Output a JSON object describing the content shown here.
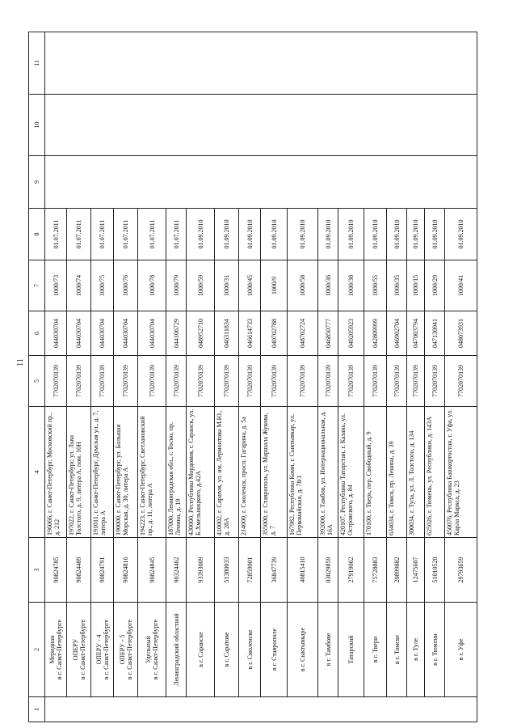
{
  "page_number": "11",
  "column_numbers": [
    "1",
    "2",
    "3",
    "4",
    "5",
    "6",
    "7",
    "8",
    "9",
    "10",
    "11"
  ],
  "rows": [
    {
      "branch": [
        "Меридиан",
        "в г. Санкт-Петербурге"
      ],
      "code": "90824785",
      "address": "196066, г. Санкт-Петербург, Московский пр., д. 212",
      "inn": "7702070139",
      "bik": "044030704",
      "reg": "1000/73",
      "date": "01.07.2011"
    },
    {
      "branch": [
        "ОПЕРУ",
        "в г. Санкт-Петербурге"
      ],
      "code": "90824489",
      "address": "197022, г. Санкт-Петербург, ул. Льва Толстого, д. 9, литера А, пом. 10Н",
      "inn": "7702070139",
      "bik": "044030704",
      "reg": "1000/74",
      "date": "01.07.2011"
    },
    {
      "branch": [
        "ОПЕРУ - 4",
        "в г. Санкт-Петербурге"
      ],
      "code": "90824791",
      "address": "191011, г. Санкт-Петербург, Думская ул., д. 7, литера А",
      "inn": "7702070139",
      "bik": "044030704",
      "reg": "1000/75",
      "date": "01.07.2011"
    },
    {
      "branch": [
        "ОПЕРУ - 5",
        "в г. Санкт-Петербурге"
      ],
      "code": "90824816",
      "address": "190000, г. Санкт-Петербург, ул. Большая Морская, д. 30, литера А",
      "inn": "7702070139",
      "bik": "044030704",
      "reg": "1000/76",
      "date": "01.07.2011"
    },
    {
      "branch": [
        "Удельный",
        "в г. Санкт-Петербурге"
      ],
      "code": "90824845",
      "address": "194223, г. Санкт-Петербург, Светлановский пр., д. 11, литера А",
      "inn": "7702070139",
      "bik": "044030704",
      "reg": "1000/78",
      "date": "01.07.2011"
    },
    {
      "branch": [
        "Ленинградский областной"
      ],
      "code": "90324462",
      "address": "187000, Ленинградская обл., г. Тосно, пр. Ленина, д. 19",
      "inn": "7702070139",
      "bik": "044106729",
      "reg": "1000/79",
      "date": "01.07.2011"
    },
    {
      "branch": [
        "в г. Саранске"
      ],
      "code": "93393009",
      "address": "430000, Республика Мордовия, г. Саранск, ул. Б.Хмельницкого, д.42А",
      "inn": "7702070139",
      "bik": "048952710",
      "reg": "1000/59",
      "date": "01.09.2010"
    },
    {
      "branch": [
        "в г. Саратове"
      ],
      "code": "51380033",
      "address": "410002, г. Саратов, ул. им. Лермонтова М.Ю., д. 28А",
      "inn": "7702070139",
      "bik": "046311834",
      "reg": "1000/31",
      "date": "01.09.2010"
    },
    {
      "branch": [
        "в г. Смоленске"
      ],
      "code": "72859001",
      "address": "214000, г. Смоленск, просп. Гагарина, д. 5а",
      "inn": "7702070139",
      "bik": "046614733",
      "reg": "1000/45",
      "date": "01.09.2010"
    },
    {
      "branch": [
        "в г. Ставрополе"
      ],
      "code": "36847739",
      "address": "355000, г. Ставрополь, ул. Маршала Жукова, д. 7",
      "inn": "7702070139",
      "bik": "040702788",
      "reg": "1000/9",
      "date": "01.09.2010"
    },
    {
      "branch": [
        "в г. Сыктывкаре"
      ],
      "code": "40815410",
      "address": "167982, Республика Коми, г. Сыктывкар, ул. Первомайская, д. 78/1",
      "inn": "7702070139",
      "bik": "048702724",
      "reg": "1000/58",
      "date": "01.09.2010"
    },
    {
      "branch": [
        "в г. Тамбове"
      ],
      "code": "03029859",
      "address": "392000, г. Тамбов, ул. Интернациональная, д. 16А",
      "inn": "7702070139",
      "bik": "046850777",
      "reg": "1000/36",
      "date": "01.09.2010"
    },
    {
      "branch": [
        "Татарский"
      ],
      "code": "27919062",
      "address": "420107, Республика Татарстан, г. Казань, ул. Островского, д. 84",
      "inn": "7702070139",
      "bik": "049205923",
      "reg": "1000/38",
      "date": "01.09.2010"
    },
    {
      "branch": [
        "в г. Твери"
      ],
      "code": "75728883",
      "address": "170100, г. Тверь, пер. Свободный, д. 9",
      "inn": "7702070139",
      "bik": "042809999",
      "reg": "1000/55",
      "date": "01.09.2010"
    },
    {
      "branch": [
        "в г. Томске"
      ],
      "code": "20899882",
      "address": "634034, г. Томск, пр. Ленина, д. 39",
      "inn": "7702070139",
      "bik": "046902704",
      "reg": "1000/35",
      "date": "01.09.2010"
    },
    {
      "branch": [
        "в г. Туле"
      ],
      "code": "12475607",
      "address": "300034, г. Тула, ул. Л. Толстого, д. 134",
      "inn": "7702070139",
      "bik": "047003794",
      "reg": "1000/15",
      "date": "01.09.2010"
    },
    {
      "branch": [
        "в г. Тюмени"
      ],
      "code": "51010520",
      "address": "625026, г. Тюмень, ул. Республики, д. 143А",
      "inn": "7702070139",
      "bik": "047130941",
      "reg": "1000/29",
      "date": "01.09.2010"
    },
    {
      "branch": [
        "в г. Уфе"
      ],
      "code": "29793659",
      "address": "450076, Республика Башкортостан, г. Уфа, ул. Карла Маркса, д. 23",
      "inn": "7702070139",
      "bik": "048073931",
      "reg": "1000/41",
      "date": "01.09.2010"
    }
  ]
}
